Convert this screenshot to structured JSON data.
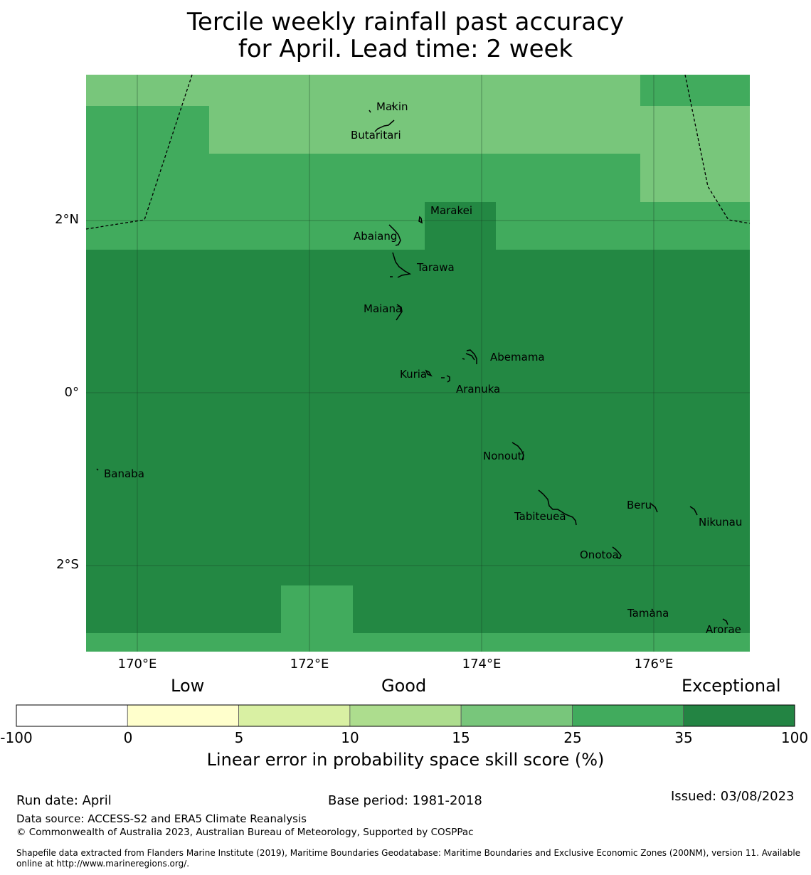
{
  "title": {
    "line1": "Tercile weekly rainfall past accuracy",
    "line2": "for April. Lead time: 2 week"
  },
  "map": {
    "colors": {
      "band_10_15": "#acdf91",
      "band_15_25": "#78c67b",
      "band_25_35": "#41ab5d",
      "band_35_100": "#238843",
      "gridline": "#1a3d22",
      "boundary": "#000000",
      "coastline": "#000000"
    },
    "lat_labels": [
      "2°N",
      "0°",
      "2°S"
    ],
    "lon_labels": [
      "170°E",
      "172°E",
      "174°E",
      "176°E"
    ],
    "islands": [
      "Makin",
      "Butaritari",
      "Marakei",
      "Abaiang",
      "Tarawa",
      "Maiana",
      "Abemama",
      "Kuria",
      "Aranuka",
      "Banaba",
      "Nonouti",
      "Tabiteuea",
      "Beru",
      "Nikunau",
      "Onotoa",
      "Tamana",
      "Arorae"
    ]
  },
  "colorbar": {
    "category_labels": [
      "Low",
      "Good",
      "Exceptional"
    ],
    "bins": [
      {
        "from": -100,
        "to": 0,
        "color": "#ffffff"
      },
      {
        "from": 0,
        "to": 5,
        "color": "#ffffcc"
      },
      {
        "from": 5,
        "to": 10,
        "color": "#d9f0a3"
      },
      {
        "from": 10,
        "to": 15,
        "color": "#addd8e"
      },
      {
        "from": 15,
        "to": 25,
        "color": "#78c67b"
      },
      {
        "from": 25,
        "to": 35,
        "color": "#41ab5d"
      },
      {
        "from": 35,
        "to": 100,
        "color": "#238443"
      }
    ],
    "tick_labels": [
      "-100",
      "0",
      "5",
      "10",
      "15",
      "25",
      "35",
      "100"
    ],
    "label": "Linear error in probability space skill score (%)"
  },
  "footer": {
    "run_date": "Run date: April",
    "base_period": "Base period: 1981-2018",
    "issued": "Issued: 03/08/2023",
    "data_source": "Data source: ACCESS-S2 and ERA5 Climate Reanalysis",
    "copyright": "© Commonwealth of Australia 2023, Australian Bureau of Meteorology, Supported by COSPPac",
    "shapefile_line1": "Shapefile data extracted from Flanders Marine Institute (2019), Maritime Boundaries Geodatabase: Maritime Boundaries and Exclusive Economic Zones (200NM), version 11. Available",
    "shapefile_line2": "online at http://www.marineregions.org/."
  }
}
